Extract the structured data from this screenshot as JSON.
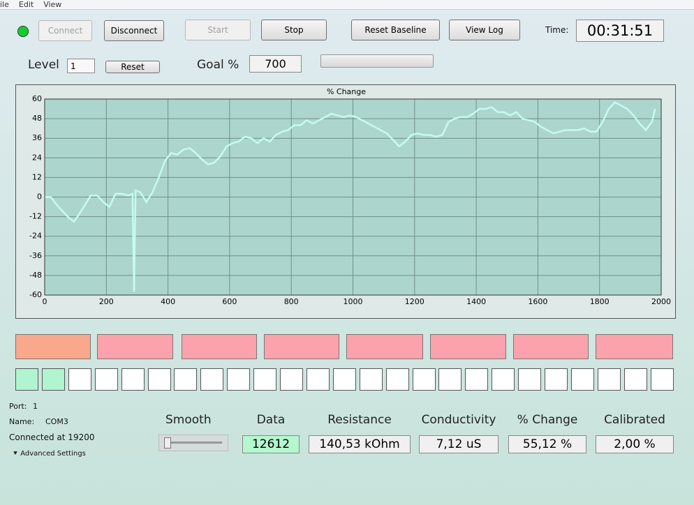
{
  "menu": [
    "ile",
    "Edit",
    "View"
  ],
  "buttons": [
    {
      "label": "Connect",
      "enabled": false
    },
    {
      "label": "Disconnect",
      "enabled": true
    },
    {
      "label": "Start",
      "enabled": false
    },
    {
      "label": "Stop",
      "enabled": true
    },
    {
      "label": "Reset Baseline",
      "enabled": true
    },
    {
      "label": "View Log",
      "enabled": true
    }
  ],
  "time": {
    "label": "Time:",
    "value": "00:31:51"
  },
  "level": {
    "label": "Level",
    "value": "1",
    "button": "Reset"
  },
  "goal": {
    "label": "Goal %",
    "value": "700"
  },
  "chart_data": {
    "type": "line",
    "title": "% Change",
    "background": "#acd6cd",
    "grid": true,
    "x": [
      0,
      20,
      40,
      60,
      80,
      95,
      110,
      130,
      150,
      170,
      190,
      210,
      230,
      250,
      270,
      285,
      290,
      295,
      310,
      330,
      350,
      370,
      390,
      410,
      430,
      450,
      470,
      490,
      510,
      530,
      550,
      570,
      590,
      610,
      630,
      650,
      670,
      690,
      710,
      730,
      750,
      770,
      790,
      810,
      830,
      850,
      870,
      890,
      910,
      930,
      950,
      970,
      990,
      1010,
      1030,
      1050,
      1070,
      1090,
      1110,
      1130,
      1150,
      1170,
      1190,
      1210,
      1230,
      1250,
      1270,
      1290,
      1310,
      1330,
      1350,
      1370,
      1390,
      1410,
      1430,
      1450,
      1470,
      1490,
      1510,
      1530,
      1550,
      1570,
      1590,
      1610,
      1630,
      1650,
      1670,
      1690,
      1710,
      1730,
      1750,
      1770,
      1790,
      1810,
      1830,
      1850,
      1870,
      1890,
      1910,
      1930,
      1950,
      1970,
      1980
    ],
    "series": [
      {
        "color": "#c6faf2",
        "values": [
          0,
          0,
          -5,
          -9,
          -13,
          -15,
          -11,
          -5,
          1,
          1,
          -3,
          -6,
          2,
          2,
          1,
          2,
          -58,
          4,
          3,
          -3,
          3,
          12,
          22,
          27,
          26,
          29,
          30,
          27,
          23,
          20,
          21,
          25,
          31,
          33,
          34,
          37,
          36,
          33,
          36,
          34,
          38,
          40,
          41,
          44,
          44,
          47,
          45,
          47,
          49,
          51,
          50,
          49,
          50,
          49,
          47,
          45,
          43,
          41,
          39,
          35,
          31,
          34,
          38,
          39,
          38,
          38,
          37,
          38,
          46,
          48,
          49,
          49,
          51,
          54,
          54,
          55,
          52,
          52,
          50,
          52,
          48,
          47,
          46,
          43,
          41,
          39,
          40,
          41,
          41,
          41,
          42,
          40,
          40,
          46,
          54,
          58,
          56,
          54,
          50,
          45,
          41,
          46,
          54
        ]
      }
    ],
    "xlim": [
      0,
      2000
    ],
    "xticks": [
      0,
      200,
      400,
      600,
      800,
      1000,
      1200,
      1400,
      1600,
      1800,
      2000
    ],
    "ylim": [
      -60,
      60
    ],
    "yticks": [
      -60,
      -48,
      -36,
      -24,
      -12,
      0,
      12,
      24,
      36,
      48,
      60
    ]
  },
  "indicators": {
    "large": [
      "#f9a88c",
      "#fca2ac",
      "#fca2ac",
      "#fca2ac",
      "#fca2ac",
      "#fca2ac",
      "#fca2ac",
      "#fca2ac"
    ],
    "small": [
      "#b0f5cf",
      "#b0f5cf",
      "#ffffff",
      "#ffffff",
      "#ffffff",
      "#ffffff",
      "#ffffff",
      "#ffffff",
      "#ffffff",
      "#ffffff",
      "#ffffff",
      "#ffffff",
      "#ffffff",
      "#ffffff",
      "#ffffff",
      "#ffffff",
      "#ffffff",
      "#ffffff",
      "#ffffff",
      "#ffffff",
      "#ffffff",
      "#ffffff",
      "#ffffff",
      "#ffffff",
      "#ffffff"
    ]
  },
  "port": {
    "port_label": "Port:",
    "port": "1",
    "name_label": "Name:",
    "name": "COM3",
    "status": "Connected at 19200",
    "advanced": "Advanced Settings"
  },
  "smooth": {
    "label": "Smooth"
  },
  "readouts": [
    {
      "label": "Data",
      "value": "12612"
    },
    {
      "label": "Resistance",
      "value": "140,53 kOhm"
    },
    {
      "label": "Conductivity",
      "value": "7,12 uS"
    },
    {
      "label": "% Change",
      "value": "55,12 %"
    },
    {
      "label": "Calibrated",
      "value": "2,00 %"
    }
  ]
}
